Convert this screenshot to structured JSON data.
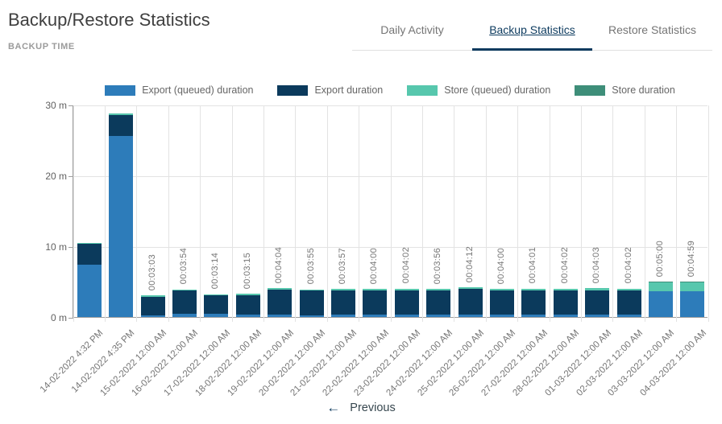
{
  "header": {
    "title": "Backup/Restore Statistics",
    "subtitle": "BACKUP TIME"
  },
  "tabs": [
    {
      "label": "Daily Activity",
      "active": false
    },
    {
      "label": "Backup Statistics",
      "active": true
    },
    {
      "label": "Restore Statistics",
      "active": false
    }
  ],
  "legend": [
    {
      "label": "Export (queued) duration",
      "color": "#2d7cba"
    },
    {
      "label": "Export duration",
      "color": "#0b3a5c"
    },
    {
      "label": "Store (queued) duration",
      "color": "#57c7ad"
    },
    {
      "label": "Store duration",
      "color": "#3e8e79"
    }
  ],
  "pagination": {
    "previous_label": "Previous"
  },
  "colors": {
    "accent": "#0c3a5e",
    "axis": "#9e9e9e",
    "gridline": "#e3e3e3",
    "label_gray": "#757575"
  },
  "chart_data": {
    "type": "bar",
    "stacked": true,
    "title": "BACKUP TIME",
    "xlabel": "",
    "ylabel": "",
    "y_unit": "minutes",
    "ylim": [
      0,
      30
    ],
    "y_ticks": [
      "0 m",
      "10 m",
      "20 m",
      "30 m"
    ],
    "grid": true,
    "legend_position": "top",
    "categories": [
      "14-02-2022 4:32 PM",
      "14-02-2022 4:35 PM",
      "15-02-2022 12:00 AM",
      "16-02-2022 12:00 AM",
      "17-02-2022 12:00 AM",
      "18-02-2022 12:00 AM",
      "19-02-2022 12:00 AM",
      "20-02-2022 12:00 AM",
      "21-02-2022 12:00 AM",
      "22-02-2022 12:00 AM",
      "23-02-2022 12:00 AM",
      "24-02-2022 12:00 AM",
      "25-02-2022 12:00 AM",
      "26-02-2022 12:00 AM",
      "27-02-2022 12:00 AM",
      "28-02-2022 12:00 AM",
      "01-03-2022 12:00 AM",
      "02-03-2022 12:00 AM",
      "03-03-2022 12:00 AM",
      "04-03-2022 12:00 AM"
    ],
    "bar_total_labels": [
      "",
      "",
      "00:03:03",
      "00:03:54",
      "00:03:14",
      "00:03:15",
      "00:04:04",
      "00:03:55",
      "00:03:57",
      "00:04:00",
      "00:04:02",
      "00:03:56",
      "00:04:12",
      "00:04:00",
      "00:04:01",
      "00:04:02",
      "00:04:03",
      "00:04:02",
      "00:05:00",
      "00:04:59"
    ],
    "series": [
      {
        "name": "Export (queued) duration",
        "color": "#2d7cba",
        "values": [
          7.4,
          25.6,
          0.25,
          0.5,
          0.5,
          0.35,
          0.3,
          0.25,
          0.35,
          0.35,
          0.3,
          0.3,
          0.35,
          0.35,
          0.3,
          0.3,
          0.35,
          0.3,
          3.6,
          3.65
        ]
      },
      {
        "name": "Export duration",
        "color": "#0b3a5c",
        "values": [
          2.9,
          2.9,
          2.6,
          3.2,
          2.55,
          2.7,
          3.55,
          3.45,
          3.4,
          3.45,
          3.5,
          3.45,
          3.6,
          3.45,
          3.5,
          3.5,
          3.45,
          3.5,
          0,
          0
        ]
      },
      {
        "name": "Store (queued) duration",
        "color": "#57c7ad",
        "values": [
          0.15,
          0.2,
          0.2,
          0.2,
          0.18,
          0.2,
          0.22,
          0.22,
          0.2,
          0.2,
          0.23,
          0.18,
          0.25,
          0.2,
          0.22,
          0.23,
          0.25,
          0.23,
          1.3,
          1.28
        ]
      },
      {
        "name": "Store duration",
        "color": "#3e8e79",
        "values": [
          0,
          0,
          0,
          0,
          0,
          0,
          0,
          0,
          0,
          0,
          0,
          0,
          0,
          0,
          0,
          0,
          0,
          0,
          0.1,
          0.06
        ]
      }
    ]
  }
}
